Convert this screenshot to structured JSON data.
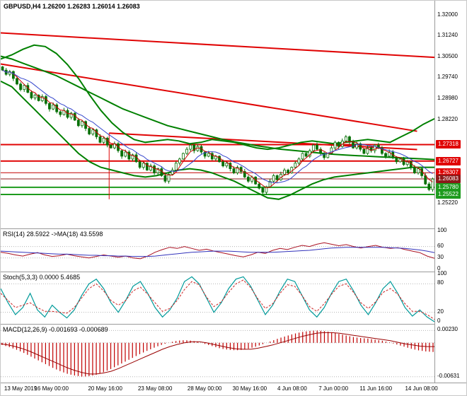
{
  "header": {
    "title": "GBPUSD,H4 1.26200 1.26283 1.26014 1.26083"
  },
  "colors": {
    "candle": "#067006",
    "band_green": "#008000",
    "ma_fast": "#cc0000",
    "ma_slow": "#3344cc",
    "level_red": "#e00404",
    "level_green": "#1e9b1e",
    "current_price_bg": "#8b1a1a",
    "grid_dotted": "#b5b5b5"
  },
  "chart_data": [
    {
      "name": "price",
      "type": "candlestick",
      "symbol": "GBPUSD",
      "timeframe": "H4",
      "ohlc_header": {
        "open": "1.26200",
        "high": "1.26283",
        "low": "1.26014",
        "close": "1.26083"
      },
      "y_range": [
        1.243,
        1.325
      ],
      "y_ticks": [
        {
          "label": "1.32000",
          "value": 1.32
        },
        {
          "label": "1.31240",
          "value": 1.3124
        },
        {
          "label": "1.30500",
          "value": 1.305
        },
        {
          "label": "1.29740",
          "value": 1.2974
        },
        {
          "label": "1.28980",
          "value": 1.2898
        },
        {
          "label": "1.28220",
          "value": 1.2822
        },
        {
          "label": "1.25220",
          "value": 1.2522
        }
      ],
      "price_labels": [
        {
          "label": "1.27318",
          "value": 1.27318,
          "bg": "#e00404"
        },
        {
          "label": "1.26727",
          "value": 1.26727,
          "bg": "#e00404"
        },
        {
          "label": "1.26307",
          "value": 1.26307,
          "bg": "#e00404"
        },
        {
          "label": "1.26083",
          "value": 1.26083,
          "bg": "#8b1a1a",
          "current": true
        },
        {
          "label": "1.25780",
          "value": 1.2578,
          "bg": "#1e9b1e"
        },
        {
          "label": "1.25522",
          "value": 1.25522,
          "bg": "#1e9b1e"
        }
      ],
      "levels": [
        {
          "price": 1.27318,
          "color": "#e00404",
          "width": 2
        },
        {
          "price": 1.26727,
          "color": "#e00404",
          "width": 2
        },
        {
          "price": 1.26307,
          "color": "#c20404",
          "width": 1
        },
        {
          "price": 1.26083,
          "color": "#8b1a1a",
          "width": 1
        },
        {
          "price": 1.2578,
          "color": "#1e9b1e",
          "width": 2
        },
        {
          "price": 1.25522,
          "color": "#1e9b1e",
          "width": 2
        }
      ],
      "trendlines": [
        {
          "x1": 0.0,
          "p1": 1.3134,
          "x2": 1.0,
          "p2": 1.3046,
          "color": "#e00404",
          "width": 2
        },
        {
          "x1": 0.0,
          "p1": 1.3022,
          "x2": 0.96,
          "p2": 1.278,
          "color": "#e00404",
          "width": 2
        },
        {
          "x1": 0.25,
          "p1": 1.2773,
          "x2": 0.96,
          "p2": 1.2714,
          "color": "#e00404",
          "width": 2
        },
        {
          "x1": 0.25,
          "p1": 1.2773,
          "x2": 0.25,
          "p2": 1.2535,
          "color": "#e00404",
          "width": 1
        }
      ],
      "closes": [
        1.3,
        1.2985,
        1.2995,
        1.297,
        1.295,
        1.293,
        1.2945,
        1.292,
        1.29,
        1.291,
        1.289,
        1.2905,
        1.288,
        1.286,
        1.2875,
        1.285,
        1.284,
        1.2855,
        1.283,
        1.2845,
        1.282,
        1.28,
        1.2815,
        1.279,
        1.277,
        1.2785,
        1.276,
        1.274,
        1.2755,
        1.273,
        1.272,
        1.2735,
        1.271,
        1.269,
        1.2705,
        1.268,
        1.2695,
        1.267,
        1.265,
        1.2665,
        1.264,
        1.2655,
        1.263,
        1.2645,
        1.262,
        1.26,
        1.2625,
        1.264,
        1.2665,
        1.268,
        1.27,
        1.2715,
        1.273,
        1.271,
        1.2725,
        1.2705,
        1.269,
        1.27,
        1.268,
        1.269,
        1.267,
        1.2655,
        1.2665,
        1.2645,
        1.263,
        1.265,
        1.2635,
        1.2615,
        1.26,
        1.2615,
        1.259,
        1.2575,
        1.256,
        1.258,
        1.26,
        1.262,
        1.2605,
        1.2625,
        1.264,
        1.263,
        1.265,
        1.2665,
        1.268,
        1.27,
        1.269,
        1.271,
        1.273,
        1.2715,
        1.27,
        1.2685,
        1.27,
        1.272,
        1.274,
        1.2725,
        1.2745,
        1.276,
        1.274,
        1.272,
        1.2735,
        1.2715,
        1.27,
        1.272,
        1.271,
        1.273,
        1.272,
        1.27,
        1.269,
        1.2705,
        1.2685,
        1.267,
        1.268,
        1.266,
        1.267,
        1.265,
        1.263,
        1.2645,
        1.262,
        1.259,
        1.257,
        1.2608
      ],
      "overlays": [
        {
          "name": "band-upper",
          "color": "#008000",
          "width": 2,
          "values": [
            1.304,
            1.3055,
            1.3075,
            1.309,
            1.3085,
            1.306,
            1.302,
            1.297,
            1.291,
            1.2855,
            1.281,
            1.2775,
            1.275,
            1.274,
            1.2745,
            1.275,
            1.2745,
            1.2735,
            1.274,
            1.275,
            1.2745,
            1.274,
            1.273,
            1.272,
            1.2715,
            1.272,
            1.273,
            1.274,
            1.2745,
            1.274,
            1.2735,
            1.274,
            1.2745,
            1.275,
            1.2745,
            1.274,
            1.276,
            1.278,
            1.2805,
            1.2825
          ]
        },
        {
          "name": "ma-long",
          "color": "#008000",
          "width": 2,
          "values": [
            1.305,
            1.304,
            1.3025,
            1.301,
            1.2995,
            1.298,
            1.296,
            1.294,
            1.292,
            1.29,
            1.288,
            1.286,
            1.2845,
            1.283,
            1.2815,
            1.28,
            1.279,
            1.278,
            1.277,
            1.276,
            1.275,
            1.2742,
            1.2735,
            1.2728,
            1.2722,
            1.2716,
            1.2712,
            1.2708,
            1.2704,
            1.27,
            1.2697,
            1.2694,
            1.2692,
            1.269,
            1.2688,
            1.2686,
            1.2684,
            1.2682,
            1.268,
            1.2678
          ]
        },
        {
          "name": "band-lower",
          "color": "#008000",
          "width": 2,
          "values": [
            1.296,
            1.294,
            1.29,
            1.286,
            1.282,
            1.278,
            1.274,
            1.27,
            1.267,
            1.265,
            1.264,
            1.263,
            1.262,
            1.2615,
            1.262,
            1.263,
            1.264,
            1.2645,
            1.264,
            1.263,
            1.2615,
            1.26,
            1.258,
            1.256,
            1.254,
            1.2535,
            1.255,
            1.257,
            1.259,
            1.2605,
            1.2615,
            1.262,
            1.2625,
            1.263,
            1.2635,
            1.264,
            1.2645,
            1.265,
            1.265,
            1.265
          ]
        }
      ]
    },
    {
      "name": "rsi",
      "type": "line",
      "label": "RSI(14) 28.5922 ->MA(18) 43.5598",
      "current_values": {
        "rsi": 28.5922,
        "ma": 43.5598
      },
      "y_range": [
        0,
        100
      ],
      "y_ticks": [
        {
          "label": "100",
          "value": 100
        },
        {
          "label": "60",
          "value": 60
        },
        {
          "label": "30",
          "value": 30
        },
        {
          "label": "0",
          "value": 0
        }
      ],
      "dotted_levels": [
        60,
        30
      ],
      "series": [
        {
          "name": "RSI(14)",
          "color": "#aa1122",
          "width": 1,
          "values": [
            45,
            42,
            38,
            35,
            40,
            44,
            38,
            34,
            36,
            40,
            36,
            33,
            30,
            34,
            38,
            35,
            32,
            35,
            30,
            28,
            35,
            45,
            52,
            58,
            55,
            60,
            55,
            50,
            53,
            48,
            44,
            40,
            36,
            33,
            38,
            45,
            42,
            50,
            55,
            52,
            58,
            63,
            60,
            66,
            70,
            66,
            62,
            65,
            60,
            56,
            60,
            63,
            58,
            55,
            57,
            52,
            48,
            44,
            35,
            29
          ]
        },
        {
          "name": "MA(18)",
          "color": "#3333bb",
          "width": 1,
          "values": [
            48,
            47,
            46,
            45,
            44,
            43,
            42,
            41,
            40,
            40,
            39,
            38,
            37,
            37,
            36,
            36,
            35,
            35,
            34,
            34,
            34,
            35,
            37,
            39,
            41,
            43,
            45,
            46,
            47,
            48,
            48,
            48,
            47,
            46,
            45,
            45,
            45,
            45,
            46,
            47,
            48,
            49,
            50,
            52,
            54,
            56,
            57,
            58,
            58,
            58,
            58,
            58,
            58,
            57,
            56,
            55,
            53,
            51,
            48,
            44
          ]
        }
      ]
    },
    {
      "name": "stochastic",
      "type": "line",
      "label": "Stoch(5,3,3) 0.0000 5.4685",
      "current_values": {
        "k": 0.0,
        "d": 5.4685
      },
      "y_range": [
        0,
        100
      ],
      "y_ticks": [
        {
          "label": "100",
          "value": 100
        },
        {
          "label": "80",
          "value": 80
        },
        {
          "label": "20",
          "value": 20
        },
        {
          "label": "0",
          "value": 0
        }
      ],
      "dotted_levels": [
        80,
        20
      ],
      "series": [
        {
          "name": "%K",
          "color": "#009a9a",
          "width": 1.2,
          "values": [
            70,
            40,
            15,
            30,
            60,
            25,
            10,
            35,
            20,
            8,
            25,
            55,
            80,
            90,
            70,
            40,
            20,
            45,
            75,
            85,
            60,
            30,
            10,
            25,
            50,
            85,
            95,
            80,
            50,
            20,
            40,
            70,
            90,
            95,
            75,
            45,
            15,
            35,
            65,
            90,
            85,
            55,
            25,
            10,
            30,
            60,
            85,
            90,
            65,
            35,
            15,
            40,
            70,
            85,
            60,
            30,
            12,
            25,
            10,
            0
          ]
        },
        {
          "name": "%D",
          "color": "#cc2222",
          "width": 1,
          "dash": true,
          "values": [
            60,
            45,
            30,
            35,
            40,
            30,
            22,
            22,
            20,
            18,
            30,
            50,
            70,
            80,
            65,
            45,
            35,
            45,
            65,
            73,
            58,
            40,
            22,
            28,
            45,
            68,
            85,
            78,
            52,
            32,
            42,
            62,
            80,
            88,
            72,
            48,
            28,
            38,
            60,
            78,
            75,
            55,
            32,
            22,
            38,
            58,
            75,
            80,
            62,
            40,
            28,
            42,
            62,
            70,
            58,
            38,
            22,
            22,
            15,
            5
          ]
        }
      ]
    },
    {
      "name": "macd",
      "type": "histogram+line",
      "label": "MACD(12,26,9) -0.001693 -0.000689",
      "current_values": {
        "macd": -0.001693,
        "signal": -0.000689
      },
      "y_range": [
        -0.007,
        0.003
      ],
      "y_ticks": [
        {
          "label": "0.00230",
          "value": 0.0023
        },
        {
          "label": "-0.00631",
          "value": -0.00631
        }
      ],
      "dotted_levels": [
        0.0023,
        0,
        -0.00631
      ],
      "histogram": {
        "name": "MACD",
        "color": "#c00000",
        "values": [
          -0.0004,
          -0.0008,
          -0.0013,
          -0.0019,
          -0.0026,
          -0.0033,
          -0.004,
          -0.0047,
          -0.0053,
          -0.0058,
          -0.0061,
          -0.0063,
          -0.0062,
          -0.0059,
          -0.0054,
          -0.0048,
          -0.0041,
          -0.0034,
          -0.0027,
          -0.002,
          -0.0014,
          -0.0008,
          -0.0003,
          0.0001,
          0.0004,
          0.0005,
          0.0004,
          0.0001,
          -0.0003,
          -0.0007,
          -0.0011,
          -0.0013,
          -0.0014,
          -0.0013,
          -0.001,
          -0.0006,
          -0.0001,
          0.0004,
          0.0009,
          0.0013,
          0.0017,
          0.002,
          0.0022,
          0.0023,
          0.0022,
          0.002,
          0.0017,
          0.0014,
          0.0011,
          0.0009,
          0.0008,
          0.0006,
          0.0004,
          0.0001,
          -0.0003,
          -0.0007,
          -0.0011,
          -0.0014,
          -0.0016,
          -0.0017
        ]
      },
      "series": [
        {
          "name": "Signal",
          "color": "#990000",
          "width": 1,
          "values": [
            -0.0002,
            -0.0004,
            -0.0007,
            -0.0011,
            -0.0016,
            -0.0022,
            -0.0028,
            -0.0034,
            -0.004,
            -0.0046,
            -0.0051,
            -0.0055,
            -0.0058,
            -0.0058,
            -0.0056,
            -0.0053,
            -0.0048,
            -0.0042,
            -0.0036,
            -0.003,
            -0.0024,
            -0.0018,
            -0.0012,
            -0.0007,
            -0.0003,
            0.0,
            0.0002,
            0.0002,
            0.0,
            -0.0003,
            -0.0006,
            -0.0009,
            -0.0011,
            -0.0012,
            -0.0012,
            -0.001,
            -0.0007,
            -0.0004,
            0.0,
            0.0004,
            0.0008,
            0.0012,
            0.0015,
            0.0018,
            0.0019,
            0.0019,
            0.0018,
            0.0016,
            0.0014,
            0.0012,
            0.001,
            0.0008,
            0.0006,
            0.0004,
            0.0001,
            -0.0002,
            -0.0004,
            -0.0006,
            -0.0007,
            -0.0007
          ]
        }
      ]
    }
  ],
  "x_axis": {
    "labels": [
      {
        "text": "13 May 2019",
        "pos": 0.008
      },
      {
        "text": "16 May 00:00",
        "pos": 0.117
      },
      {
        "text": "20 May 16:00",
        "pos": 0.241
      },
      {
        "text": "23 May 08:00",
        "pos": 0.356
      },
      {
        "text": "28 May 00:00",
        "pos": 0.47
      },
      {
        "text": "30 May 16:00",
        "pos": 0.574
      },
      {
        "text": "4 Jun 08:00",
        "pos": 0.672
      },
      {
        "text": "7 Jun 00:00",
        "pos": 0.767
      },
      {
        "text": "11 Jun 16:00",
        "pos": 0.865
      },
      {
        "text": "14 Jun 08:00",
        "pos": 0.97
      }
    ]
  }
}
